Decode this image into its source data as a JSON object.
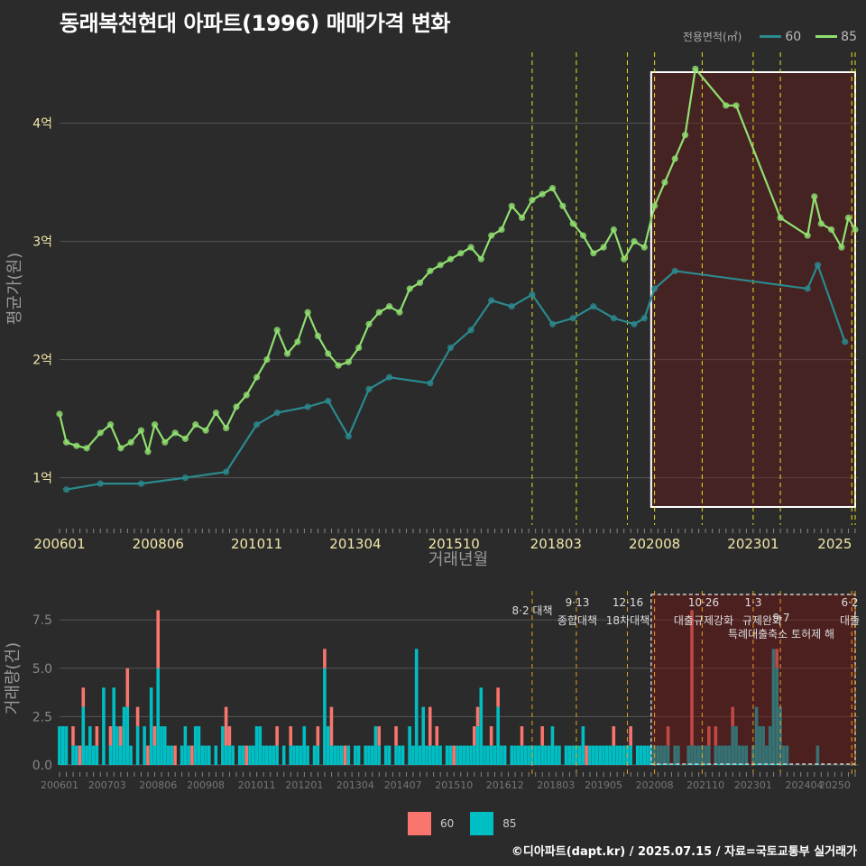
{
  "title": "동래복천현대 아파트(1996) 매매가격 변화",
  "legend": {
    "title": "전용면적(㎡)",
    "items": [
      {
        "label": "60",
        "line_color": "#2a8a8e",
        "bar_color": "#f8766d"
      },
      {
        "label": "85",
        "line_color": "#90e070",
        "bar_color": "#00bfc4"
      }
    ]
  },
  "footer": "©디아파트(dapt.kr) / 2025.07.15 / 자료=국토교통부 실거래가",
  "chart_data": [
    {
      "type": "line",
      "ylabel": "평균가(원)",
      "xlabel": "거래년월",
      "yticks": [
        {
          "v": 1,
          "label": "1억"
        },
        {
          "v": 2,
          "label": "2억"
        },
        {
          "v": 3,
          "label": "3억"
        },
        {
          "v": 4,
          "label": "4억"
        }
      ],
      "ylim": [
        0.6,
        4.6
      ],
      "xticks": [
        "200601",
        "200806",
        "201011",
        "201304",
        "201510",
        "201803",
        "202008",
        "202301",
        "2025"
      ],
      "xrange_months": [
        "2006-01",
        "2025-07"
      ],
      "highlight_range": [
        "2020-07",
        "2025-07"
      ],
      "policy_lines": [
        "2017-08",
        "2018-09",
        "2019-12",
        "2020-08",
        "2021-10",
        "2023-01",
        "2023-09",
        "2025-06",
        "2025-07"
      ],
      "series": [
        {
          "name": "85",
          "points": [
            [
              "2006-01",
              1.54
            ],
            [
              "2006-03",
              1.3
            ],
            [
              "2006-06",
              1.27
            ],
            [
              "2006-09",
              1.25
            ],
            [
              "2007-01",
              1.38
            ],
            [
              "2007-04",
              1.45
            ],
            [
              "2007-07",
              1.25
            ],
            [
              "2007-10",
              1.3
            ],
            [
              "2008-01",
              1.4
            ],
            [
              "2008-03",
              1.22
            ],
            [
              "2008-05",
              1.45
            ],
            [
              "2008-08",
              1.3
            ],
            [
              "2008-11",
              1.38
            ],
            [
              "2009-02",
              1.33
            ],
            [
              "2009-05",
              1.45
            ],
            [
              "2009-08",
              1.4
            ],
            [
              "2009-11",
              1.55
            ],
            [
              "2010-02",
              1.42
            ],
            [
              "2010-05",
              1.6
            ],
            [
              "2010-08",
              1.7
            ],
            [
              "2010-11",
              1.85
            ],
            [
              "2011-02",
              2.0
            ],
            [
              "2011-05",
              2.25
            ],
            [
              "2011-08",
              2.05
            ],
            [
              "2011-11",
              2.15
            ],
            [
              "2012-02",
              2.4
            ],
            [
              "2012-05",
              2.2
            ],
            [
              "2012-08",
              2.05
            ],
            [
              "2012-11",
              1.95
            ],
            [
              "2013-02",
              1.98
            ],
            [
              "2013-05",
              2.1
            ],
            [
              "2013-08",
              2.3
            ],
            [
              "2013-11",
              2.4
            ],
            [
              "2014-02",
              2.45
            ],
            [
              "2014-05",
              2.4
            ],
            [
              "2014-08",
              2.6
            ],
            [
              "2014-11",
              2.65
            ],
            [
              "2015-02",
              2.75
            ],
            [
              "2015-05",
              2.8
            ],
            [
              "2015-08",
              2.85
            ],
            [
              "2015-11",
              2.9
            ],
            [
              "2016-02",
              2.95
            ],
            [
              "2016-05",
              2.85
            ],
            [
              "2016-08",
              3.05
            ],
            [
              "2016-11",
              3.1
            ],
            [
              "2017-02",
              3.3
            ],
            [
              "2017-05",
              3.2
            ],
            [
              "2017-08",
              3.35
            ],
            [
              "2017-11",
              3.4
            ],
            [
              "2018-02",
              3.45
            ],
            [
              "2018-05",
              3.3
            ],
            [
              "2018-08",
              3.15
            ],
            [
              "2018-11",
              3.05
            ],
            [
              "2019-02",
              2.9
            ],
            [
              "2019-05",
              2.95
            ],
            [
              "2019-08",
              3.1
            ],
            [
              "2019-11",
              2.85
            ],
            [
              "2020-02",
              3.0
            ],
            [
              "2020-05",
              2.95
            ],
            [
              "2020-08",
              3.3
            ],
            [
              "2020-11",
              3.5
            ],
            [
              "2021-02",
              3.7
            ],
            [
              "2021-05",
              3.9
            ],
            [
              "2021-08",
              4.46
            ],
            [
              "2022-05",
              4.15
            ],
            [
              "2022-08",
              4.15
            ],
            [
              "2023-09",
              3.2
            ],
            [
              "2024-05",
              3.05
            ],
            [
              "2024-07",
              3.38
            ],
            [
              "2024-09",
              3.15
            ],
            [
              "2024-12",
              3.1
            ],
            [
              "2025-03",
              2.95
            ],
            [
              "2025-05",
              3.2
            ],
            [
              "2025-07",
              3.1
            ]
          ]
        },
        {
          "name": "60",
          "points": [
            [
              "2006-03",
              0.9
            ],
            [
              "2007-01",
              0.95
            ],
            [
              "2008-01",
              0.95
            ],
            [
              "2009-02",
              1.0
            ],
            [
              "2010-02",
              1.05
            ],
            [
              "2010-11",
              1.45
            ],
            [
              "2011-05",
              1.55
            ],
            [
              "2012-02",
              1.6
            ],
            [
              "2012-08",
              1.65
            ],
            [
              "2013-02",
              1.35
            ],
            [
              "2013-08",
              1.75
            ],
            [
              "2014-02",
              1.85
            ],
            [
              "2015-02",
              1.8
            ],
            [
              "2015-08",
              2.1
            ],
            [
              "2016-02",
              2.25
            ],
            [
              "2016-08",
              2.5
            ],
            [
              "2017-02",
              2.45
            ],
            [
              "2017-08",
              2.55
            ],
            [
              "2018-02",
              2.3
            ],
            [
              "2018-08",
              2.35
            ],
            [
              "2019-02",
              2.45
            ],
            [
              "2019-08",
              2.35
            ],
            [
              "2020-02",
              2.3
            ],
            [
              "2020-05",
              2.35
            ],
            [
              "2020-08",
              2.6
            ],
            [
              "2021-02",
              2.75
            ],
            [
              "2024-05",
              2.6
            ],
            [
              "2024-08",
              2.8
            ],
            [
              "2025-04",
              2.15
            ]
          ]
        }
      ]
    },
    {
      "type": "bar",
      "ylabel": "거래량(건)",
      "yticks": [
        "0.0",
        "2.5",
        "5.0",
        "7.5"
      ],
      "ylim": [
        0,
        9
      ],
      "xticks": [
        "200601",
        "200703",
        "200806",
        "200908",
        "201011",
        "201201",
        "201304",
        "201407",
        "201510",
        "201612",
        "201803",
        "201905",
        "202008",
        "202110",
        "202301",
        "202404",
        "20250"
      ],
      "xrange_months": [
        "2006-01",
        "2025-07"
      ],
      "annotations": [
        "8·2 대책",
        "9·13",
        "종합대책",
        "12·16",
        "18차대책",
        "10·26",
        "대출규제강화",
        "1·3",
        "규제완화",
        "9·7",
        "특례대출축소 토허제 해",
        "6·2",
        "대출"
      ],
      "series_85": [
        2,
        2,
        2,
        0,
        1,
        1,
        0,
        3,
        1,
        2,
        1,
        1,
        0,
        4,
        0,
        1,
        4,
        2,
        1,
        3,
        3,
        1,
        0,
        2,
        0,
        2,
        0,
        4,
        1,
        5,
        2,
        2,
        1,
        1,
        0,
        0,
        1,
        2,
        1,
        0,
        2,
        2,
        1,
        1,
        1,
        0,
        1,
        0,
        2,
        1,
        1,
        1,
        0,
        1,
        1,
        0,
        1,
        1,
        2,
        2,
        1,
        1,
        1,
        1,
        1,
        0,
        1,
        0,
        1,
        1,
        1,
        1,
        2,
        1,
        0,
        1,
        1,
        0,
        5,
        2,
        1,
        1,
        1,
        1,
        0,
        1,
        0,
        1,
        1,
        0,
        1,
        1,
        1,
        2,
        1,
        0,
        1,
        1,
        0,
        1,
        1,
        1,
        0,
        2,
        1,
        6,
        1,
        3,
        1,
        1,
        1,
        1,
        1,
        0,
        1,
        1,
        0,
        1,
        1,
        1,
        1,
        1,
        1,
        2,
        4,
        1,
        1,
        1,
        1,
        3,
        1,
        1,
        0,
        1,
        1,
        1,
        1,
        1,
        1,
        1,
        1,
        1,
        1,
        1,
        1,
        2,
        1,
        1,
        0,
        1,
        1,
        1,
        1,
        1,
        2,
        0,
        1,
        1,
        1,
        1,
        1,
        1,
        1,
        1,
        1,
        1,
        1,
        1,
        1,
        0,
        1,
        1,
        1,
        1,
        1,
        1,
        1,
        1,
        1,
        1,
        0,
        1,
        1,
        0,
        0,
        1,
        1,
        1,
        1,
        1,
        1,
        1,
        0,
        1,
        1,
        1,
        1,
        1,
        2,
        2,
        1,
        1,
        1,
        0,
        1,
        3,
        2,
        2,
        1,
        2,
        6,
        5,
        3,
        1,
        1,
        0,
        0,
        0,
        0,
        0,
        0,
        0,
        0,
        1,
        0,
        0,
        0,
        0,
        0,
        0,
        0,
        0,
        0,
        0,
        0,
        0,
        0,
        0,
        0,
        0,
        0,
        0,
        0,
        0,
        0,
        0,
        0,
        0,
        0,
        0,
        0,
        0,
        0,
        0,
        0,
        0,
        1,
        0,
        0,
        0,
        0,
        0,
        0,
        0,
        0,
        0,
        0,
        0,
        1,
        0,
        0,
        0,
        0,
        0,
        0,
        0,
        0,
        0,
        0,
        0,
        0,
        0,
        0,
        0,
        0,
        1,
        0,
        0,
        1,
        0,
        1,
        1,
        0,
        0,
        0,
        0,
        1,
        0,
        1,
        2,
        0,
        0,
        1,
        0
      ],
      "series_60": [
        0,
        0,
        0,
        0,
        1,
        0,
        1,
        1,
        0,
        0,
        0,
        1,
        0,
        0,
        0,
        1,
        0,
        0,
        1,
        0,
        2,
        0,
        0,
        1,
        0,
        0,
        1,
        0,
        1,
        3,
        0,
        0,
        0,
        0,
        1,
        0,
        0,
        0,
        0,
        1,
        0,
        0,
        0,
        0,
        0,
        0,
        0,
        0,
        0,
        2,
        1,
        0,
        0,
        0,
        0,
        1,
        0,
        0,
        0,
        0,
        0,
        0,
        0,
        0,
        1,
        0,
        0,
        0,
        1,
        0,
        0,
        0,
        0,
        0,
        0,
        0,
        1,
        0,
        1,
        0,
        2,
        0,
        0,
        0,
        1,
        0,
        0,
        0,
        0,
        0,
        0,
        0,
        0,
        0,
        1,
        0,
        0,
        0,
        0,
        1,
        0,
        0,
        0,
        0,
        0,
        0,
        0,
        0,
        0,
        2,
        0,
        1,
        0,
        0,
        0,
        0,
        1,
        0,
        0,
        0,
        0,
        0,
        1,
        1,
        0,
        0,
        0,
        1,
        0,
        1,
        0,
        0,
        0,
        0,
        0,
        0,
        1,
        0,
        0,
        0,
        0,
        0,
        1,
        0,
        0,
        0,
        0,
        0,
        0,
        0,
        0,
        0,
        0,
        0,
        0,
        1,
        0,
        0,
        0,
        0,
        0,
        0,
        0,
        1,
        0,
        0,
        0,
        0,
        1,
        0,
        0,
        0,
        0,
        0,
        0,
        0,
        0,
        0,
        0,
        1,
        0,
        0,
        0,
        0,
        0,
        0,
        7,
        0,
        0,
        0,
        0,
        1,
        0,
        1,
        0,
        0,
        0,
        0,
        1,
        0,
        0,
        0,
        0,
        0,
        0,
        0,
        0,
        0,
        0,
        0,
        0,
        1,
        0,
        0,
        0,
        0,
        0,
        0,
        0,
        0,
        0,
        0,
        0,
        0,
        0,
        0,
        0,
        0,
        0,
        0,
        0,
        0,
        0,
        0,
        0,
        0,
        0,
        0,
        0,
        1,
        0,
        0,
        0,
        0,
        0,
        0,
        0,
        0,
        0,
        0,
        0,
        0,
        0,
        0,
        0,
        0,
        0,
        0,
        0,
        0,
        0,
        0,
        1,
        0,
        0,
        0,
        0,
        0,
        0,
        0,
        0,
        0,
        0,
        0,
        0,
        0,
        0,
        0,
        0,
        0,
        0,
        0,
        0,
        0,
        0,
        0,
        0,
        0,
        1,
        0,
        0,
        0,
        1,
        0,
        0,
        0,
        0,
        0,
        0,
        1,
        0,
        0,
        0,
        0,
        0,
        0,
        0,
        1
      ]
    }
  ]
}
